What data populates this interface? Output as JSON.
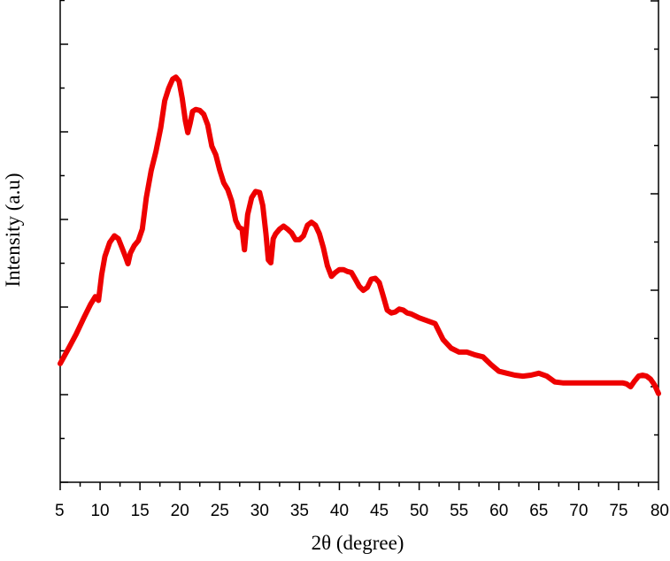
{
  "chart_data": {
    "type": "line",
    "xlabel": "2θ (degree)",
    "ylabel": "Intensity (a.u)",
    "xlim": [
      5,
      80
    ],
    "ylim": [
      0,
      100
    ],
    "x_ticks": [
      5,
      10,
      15,
      20,
      25,
      30,
      35,
      40,
      45,
      50,
      55,
      60,
      65,
      70,
      75,
      80
    ],
    "y_tick_labels_shown": false,
    "grid": false,
    "legend": "none",
    "series": [
      {
        "color": "#ee0000",
        "x": [
          5,
          6,
          7,
          8,
          8.8,
          9.4,
          9.8,
          10.2,
          10.6,
          11.2,
          11.8,
          12.3,
          12.8,
          13.2,
          13.5,
          13.8,
          14.3,
          14.8,
          15.3,
          15.8,
          16.4,
          17,
          17.6,
          18.1,
          18.6,
          19.1,
          19.5,
          19.9,
          20.3,
          20.7,
          21,
          21.3,
          21.6,
          22,
          22.5,
          23,
          23.5,
          24,
          24.5,
          25,
          25.5,
          26,
          26.5,
          27,
          27.4,
          27.8,
          28.1,
          28.5,
          29,
          29.5,
          30,
          30.4,
          30.8,
          31.1,
          31.4,
          31.7,
          32,
          32.5,
          33,
          33.5,
          34,
          34.5,
          35,
          35.5,
          36,
          36.5,
          37,
          37.5,
          38,
          38.5,
          39,
          39.5,
          40,
          40.5,
          41,
          41.5,
          42,
          42.5,
          43,
          43.5,
          44,
          44.5,
          45,
          45.5,
          46,
          46.5,
          47,
          47.5,
          48,
          48.5,
          49,
          50,
          51,
          52,
          53,
          54,
          55,
          56,
          57,
          58,
          59,
          60,
          61,
          62,
          63,
          64,
          65,
          66,
          67,
          68,
          70,
          72,
          74,
          75,
          75.5,
          76,
          76.5,
          77,
          77.5,
          78,
          78.5,
          79,
          79.5,
          80
        ],
        "values": [
          24.6,
          27.6,
          30.7,
          34.2,
          36.9,
          38.5,
          37.7,
          43.1,
          46.8,
          49.7,
          51.1,
          50.5,
          48.4,
          46.7,
          45.3,
          47.5,
          49.1,
          50.1,
          52.5,
          59.0,
          64.6,
          68.6,
          73.5,
          79.1,
          81.7,
          83.6,
          84.0,
          83.2,
          79.6,
          74.9,
          72.5,
          74.5,
          76.9,
          77.3,
          77.1,
          76.3,
          74.1,
          69.7,
          67.9,
          64.7,
          62.1,
          60.7,
          58.3,
          54.3,
          52.9,
          52.5,
          48.2,
          55.5,
          59.0,
          60.3,
          60.1,
          57.4,
          51.5,
          46.1,
          45.5,
          50.5,
          51.5,
          52.5,
          53.1,
          52.5,
          51.7,
          50.3,
          50.3,
          51.1,
          53.3,
          53.9,
          53.3,
          51.5,
          48.6,
          44.9,
          42.7,
          43.5,
          44.1,
          44.1,
          43.7,
          43.5,
          42.1,
          40.6,
          39.8,
          40.4,
          42.1,
          42.3,
          41.4,
          38.6,
          35.7,
          35.1,
          35.3,
          35.9,
          35.7,
          35.1,
          34.9,
          34.1,
          33.5,
          32.9,
          29.6,
          27.8,
          27.0,
          27.0,
          26.4,
          26.0,
          24.4,
          23.0,
          22.6,
          22.2,
          22.0,
          22.2,
          22.6,
          22.0,
          20.8,
          20.6,
          20.6,
          20.6,
          20.6,
          20.6,
          20.6,
          20.4,
          19.8,
          21.0,
          22.0,
          22.2,
          22.0,
          21.4,
          20.2,
          18.4
        ]
      }
    ]
  }
}
